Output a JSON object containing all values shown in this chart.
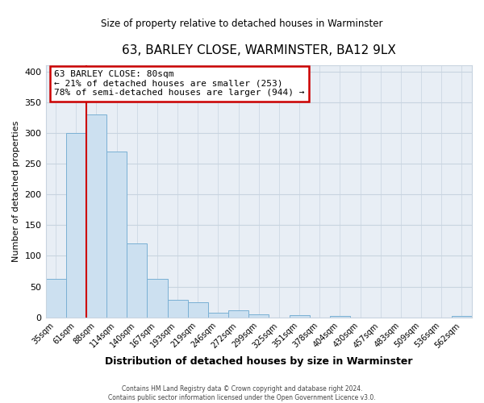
{
  "title": "63, BARLEY CLOSE, WARMINSTER, BA12 9LX",
  "subtitle": "Size of property relative to detached houses in Warminster",
  "xlabel": "Distribution of detached houses by size in Warminster",
  "ylabel": "Number of detached properties",
  "bin_labels": [
    "35sqm",
    "61sqm",
    "88sqm",
    "114sqm",
    "140sqm",
    "167sqm",
    "193sqm",
    "219sqm",
    "246sqm",
    "272sqm",
    "299sqm",
    "325sqm",
    "351sqm",
    "378sqm",
    "404sqm",
    "430sqm",
    "457sqm",
    "483sqm",
    "509sqm",
    "536sqm",
    "562sqm"
  ],
  "bar_heights": [
    63,
    300,
    330,
    270,
    120,
    63,
    28,
    25,
    8,
    12,
    5,
    0,
    4,
    0,
    3,
    0,
    0,
    0,
    0,
    0,
    3
  ],
  "bar_color": "#cce0f0",
  "bar_edge_color": "#7ab0d4",
  "vline_color": "#cc0000",
  "annotation_text": "63 BARLEY CLOSE: 80sqm\n← 21% of detached houses are smaller (253)\n78% of semi-detached houses are larger (944) →",
  "annotation_box_color": "#ffffff",
  "annotation_box_edge_color": "#cc0000",
  "ylim": [
    0,
    410
  ],
  "yticks": [
    0,
    50,
    100,
    150,
    200,
    250,
    300,
    350,
    400
  ],
  "footer1": "Contains HM Land Registry data © Crown copyright and database right 2024.",
  "footer2": "Contains public sector information licensed under the Open Government Licence v3.0.",
  "bg_color": "#ffffff",
  "plot_bg_color": "#e8eef5",
  "grid_color": "#c8d4e0"
}
